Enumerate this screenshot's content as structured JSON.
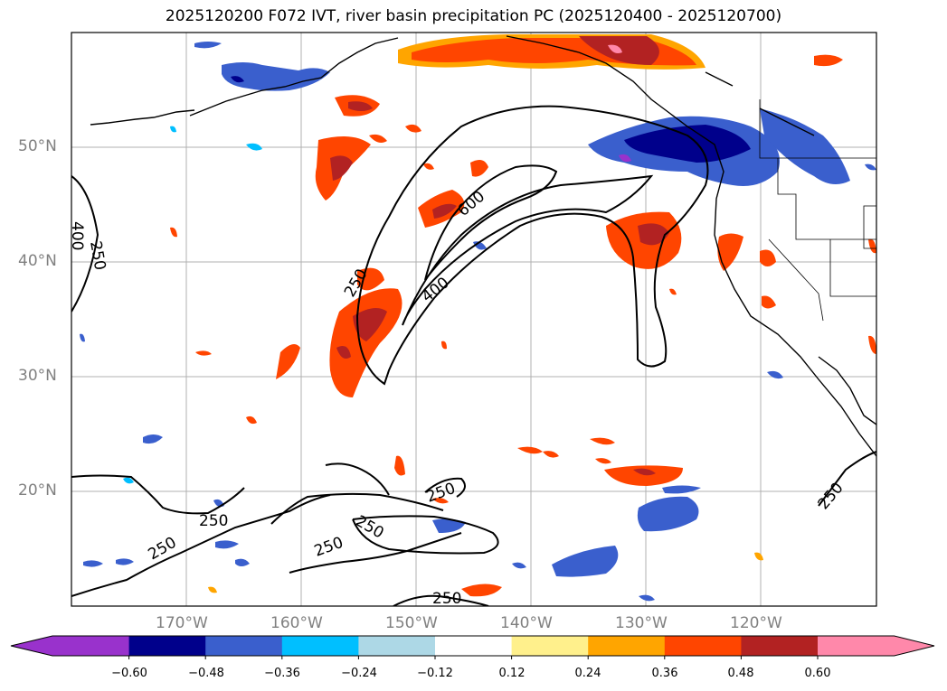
{
  "title": "2025120200 F072 IVT, river basin precipitation PC (2025120400 - 2025120700)",
  "lat_labels": [
    "50°N",
    "40°N",
    "30°N",
    "20°N"
  ],
  "lon_labels": [
    "170°W",
    "160°W",
    "150°W",
    "140°W",
    "130°W",
    "120°W"
  ],
  "contour_labels": [
    "250",
    "400",
    "600",
    "250",
    "400",
    "250",
    "250",
    "250",
    "250",
    "250",
    "250",
    "250"
  ],
  "colorbar": {
    "ticks": [
      "−0.60",
      "−0.48",
      "−0.36",
      "−0.24",
      "−0.12",
      "0.12",
      "0.24",
      "0.36",
      "0.48",
      "0.60"
    ],
    "colors": [
      "#9932cc",
      "#00008b",
      "#3a5fcd",
      "#00bfff",
      "#add8e6",
      "#ffffff",
      "#fff08c",
      "#ffa500",
      "#ff4500",
      "#b22222",
      "#ff88aa"
    ]
  },
  "chart_data": {
    "type": "contour-map",
    "fields": [
      "IVT contours",
      "river basin precipitation PC (shaded)"
    ],
    "contour_levels": [
      250,
      400,
      600
    ],
    "shading_levels": [
      -0.6,
      -0.48,
      -0.36,
      -0.24,
      -0.12,
      0.12,
      0.24,
      0.36,
      0.48,
      0.6
    ],
    "lon_range": [
      "180°",
      "110°W"
    ],
    "lat_range": [
      "10°N",
      "60°N"
    ],
    "grid": true
  }
}
